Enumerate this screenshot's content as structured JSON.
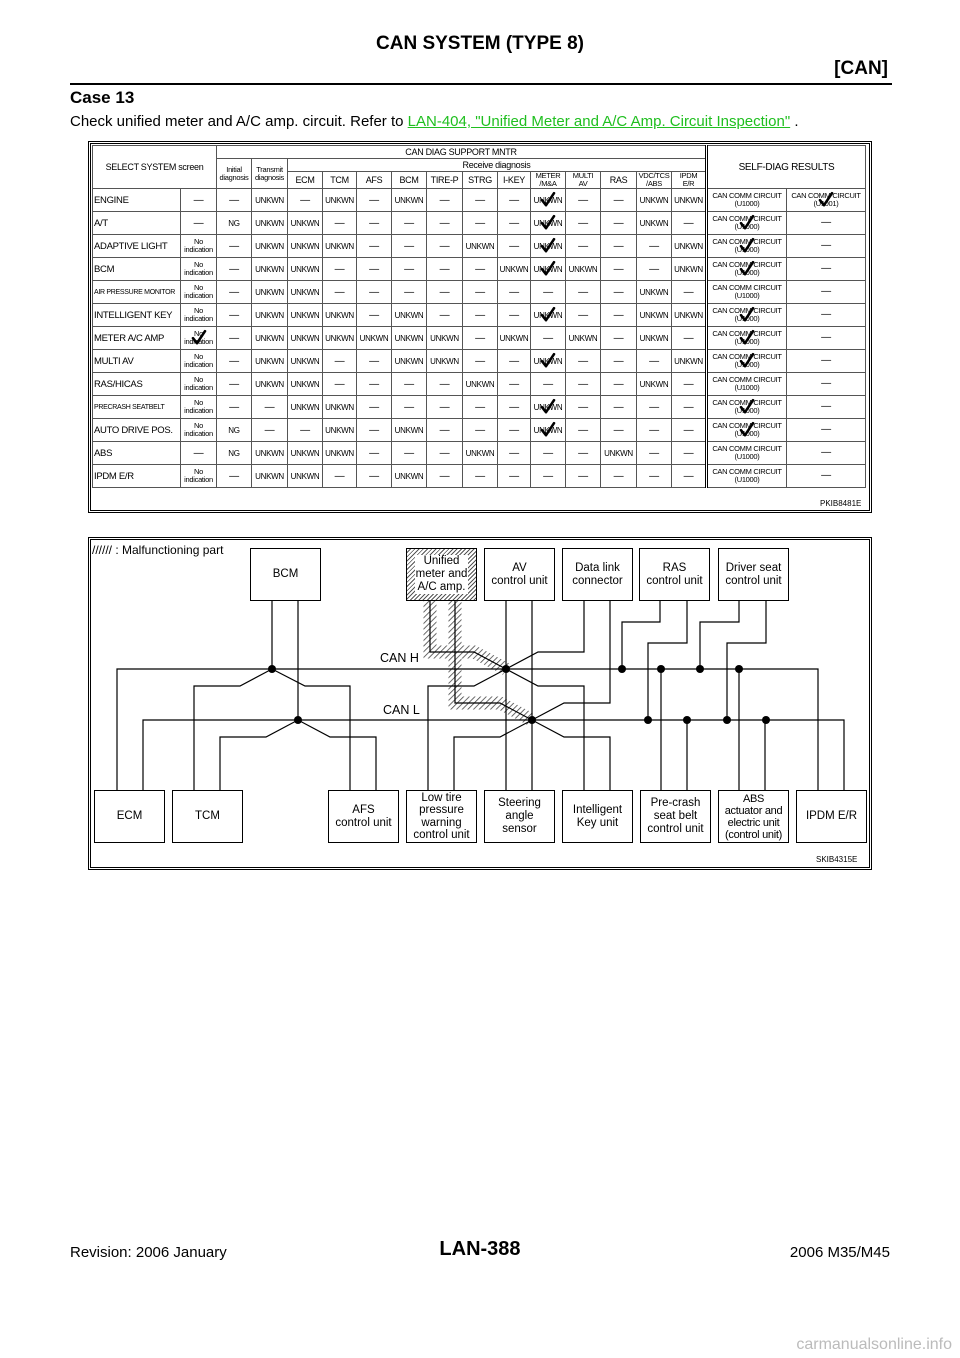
{
  "header": {
    "title": "CAN SYSTEM (TYPE 8)",
    "section": "[CAN]"
  },
  "case": {
    "title": "Case 13",
    "text_before": "Check unified meter and A/C amp. circuit. Refer to ",
    "link": "LAN-404, \"Unified Meter and A/C Amp. Circuit Inspection\"",
    "text_after": " ."
  },
  "colors": {
    "link": "#1fbf1f"
  },
  "table": {
    "select_header": "SELECT SYSTEM screen",
    "can_diag_header": "CAN DIAG SUPPORT MNTR",
    "initial_header": "Initial\ndiagnosis",
    "transmit_header": "Transmit\ndiagnosis",
    "receive_header": "Receive diagnosis",
    "receive_columns": [
      "ECM",
      "TCM",
      "AFS",
      "BCM",
      "TIRE-P",
      "STRG",
      "I-KEY",
      "METER\n/M&A",
      "MULTI\nAV",
      "RAS",
      "VDC/TCS\n/ABS",
      "IPDM\nE/R"
    ],
    "self_diag_header": "SELF-DIAG RESULTS",
    "figure_code": "PKIB8481E",
    "rows": [
      {
        "name": "ENGINE",
        "cells": [
          "—",
          "—",
          "UNKWN",
          "—",
          "UNKWN",
          "—",
          "UNKWN",
          "—",
          "—",
          "—",
          "UNKWN",
          "—",
          "—",
          "UNKWN",
          "UNKWN",
          "CAN COMM CIRCUIT\n(U1000)",
          "CAN COMM CIRCUIT\n(U1001)"
        ],
        "checks": [
          10,
          16
        ]
      },
      {
        "name": "A/T",
        "cells": [
          "—",
          "NG",
          "UNKWN",
          "UNKWN",
          "—",
          "—",
          "—",
          "—",
          "—",
          "—",
          "UNKWN",
          "—",
          "—",
          "UNKWN",
          "—",
          "CAN COMM CIRCUIT\n(U1000)",
          "—"
        ],
        "checks": [
          10,
          15
        ]
      },
      {
        "name": "ADAPTIVE LIGHT",
        "cells": [
          "No\nindication",
          "—",
          "UNKWN",
          "UNKWN",
          "UNKWN",
          "—",
          "—",
          "—",
          "UNKWN",
          "—",
          "UNKWN",
          "—",
          "—",
          "—",
          "UNKWN",
          "CAN COMM CIRCUIT\n(U1000)",
          "—"
        ],
        "checks": [
          10,
          15
        ]
      },
      {
        "name": "BCM",
        "cells": [
          "No\nindication",
          "—",
          "UNKWN",
          "UNKWN",
          "—",
          "—",
          "—",
          "—",
          "—",
          "UNKWN",
          "UNKWN",
          "UNKWN",
          "—",
          "—",
          "UNKWN",
          "CAN COMM CIRCUIT\n(U1000)",
          "—"
        ],
        "checks": [
          10,
          15
        ]
      },
      {
        "name": "AIR PRESSURE MONITOR",
        "cells": [
          "No\nindication",
          "—",
          "UNKWN",
          "UNKWN",
          "—",
          "—",
          "—",
          "—",
          "—",
          "—",
          "—",
          "—",
          "—",
          "UNKWN",
          "—",
          "CAN COMM CIRCUIT\n(U1000)",
          "—"
        ],
        "checks": []
      },
      {
        "name": "INTELLIGENT KEY",
        "cells": [
          "No\nindication",
          "—",
          "UNKWN",
          "UNKWN",
          "UNKWN",
          "—",
          "UNKWN",
          "—",
          "—",
          "—",
          "UNKWN",
          "—",
          "—",
          "UNKWN",
          "UNKWN",
          "CAN COMM CIRCUIT\n(U1000)",
          "—"
        ],
        "checks": [
          10,
          15
        ]
      },
      {
        "name": "METER A/C AMP",
        "cells": [
          "No\nindication",
          "—",
          "UNKWN",
          "UNKWN",
          "UNKWN",
          "UNKWN",
          "UNKWN",
          "UNKWN",
          "—",
          "UNKWN",
          "—",
          "UNKWN",
          "—",
          "UNKWN",
          "—",
          "CAN COMM CIRCUIT\n(U1000)",
          "—"
        ],
        "checks": [
          0,
          15
        ]
      },
      {
        "name": "MULTI AV",
        "cells": [
          "No\nindication",
          "—",
          "UNKWN",
          "UNKWN",
          "—",
          "—",
          "UNKWN",
          "UNKWN",
          "—",
          "—",
          "UNKWN",
          "—",
          "—",
          "—",
          "UNKWN",
          "CAN COMM CIRCUIT\n(U1000)",
          "—"
        ],
        "checks": [
          10,
          15
        ]
      },
      {
        "name": "RAS/HICAS",
        "cells": [
          "No\nindication",
          "—",
          "UNKWN",
          "UNKWN",
          "—",
          "—",
          "—",
          "—",
          "UNKWN",
          "—",
          "—",
          "—",
          "—",
          "UNKWN",
          "—",
          "CAN COMM CIRCUIT\n(U1000)",
          "—"
        ],
        "checks": []
      },
      {
        "name": "PRECRASH SEATBELT",
        "cells": [
          "No\nindication",
          "—",
          "—",
          "UNKWN",
          "UNKWN",
          "—",
          "—",
          "—",
          "—",
          "—",
          "UNKWN",
          "—",
          "—",
          "—",
          "—",
          "CAN COMM CIRCUIT\n(U1000)",
          "—"
        ],
        "checks": [
          10,
          15
        ]
      },
      {
        "name": "AUTO DRIVE POS.",
        "cells": [
          "No\nindication",
          "NG",
          "—",
          "—",
          "UNKWN",
          "—",
          "UNKWN",
          "—",
          "—",
          "—",
          "UNKWN",
          "—",
          "—",
          "—",
          "—",
          "CAN COMM CIRCUIT\n(U1000)",
          "—"
        ],
        "checks": [
          10,
          15
        ]
      },
      {
        "name": "ABS",
        "cells": [
          "—",
          "NG",
          "UNKWN",
          "UNKWN",
          "UNKWN",
          "—",
          "—",
          "—",
          "UNKWN",
          "—",
          "—",
          "—",
          "UNKWN",
          "—",
          "—",
          "CAN COMM CIRCUIT\n(U1000)",
          "—"
        ],
        "checks": []
      },
      {
        "name": "IPDM E/R",
        "cells": [
          "No\nindication",
          "—",
          "UNKWN",
          "UNKWN",
          "—",
          "—",
          "UNKWN",
          "—",
          "—",
          "—",
          "—",
          "—",
          "—",
          "—",
          "—",
          "CAN COMM CIRCUIT\n(U1000)",
          "—"
        ],
        "checks": []
      }
    ]
  },
  "diagram": {
    "legend": "////// : Malfunctioning part",
    "can_h": "CAN H",
    "can_l": "CAN L",
    "figure_code": "SKIB4315E",
    "top_units": [
      "BCM",
      "Unified\nmeter and\nA/C amp.",
      "AV\ncontrol unit",
      "Data link\nconnector",
      "RAS\ncontrol unit",
      "Driver seat\ncontrol unit"
    ],
    "bottom_units": [
      "ECM",
      "TCM",
      "AFS\ncontrol unit",
      "Low tire\npressure\nwarning\ncontrol unit",
      "Steering\nangle\nsensor",
      "Intelligent\nKey unit",
      "Pre-crash\nseat belt\ncontrol unit",
      "ABS\nactuator and\nelectric unit\n(control unit)",
      "IPDM E/R"
    ],
    "malfunctioning_unit": "Unified\nmeter and\nA/C amp."
  },
  "footer": {
    "page": "LAN-388",
    "revision": "Revision: 2006 January",
    "model": "2006 M35/M45",
    "watermark": "carmanualsonline.info"
  }
}
